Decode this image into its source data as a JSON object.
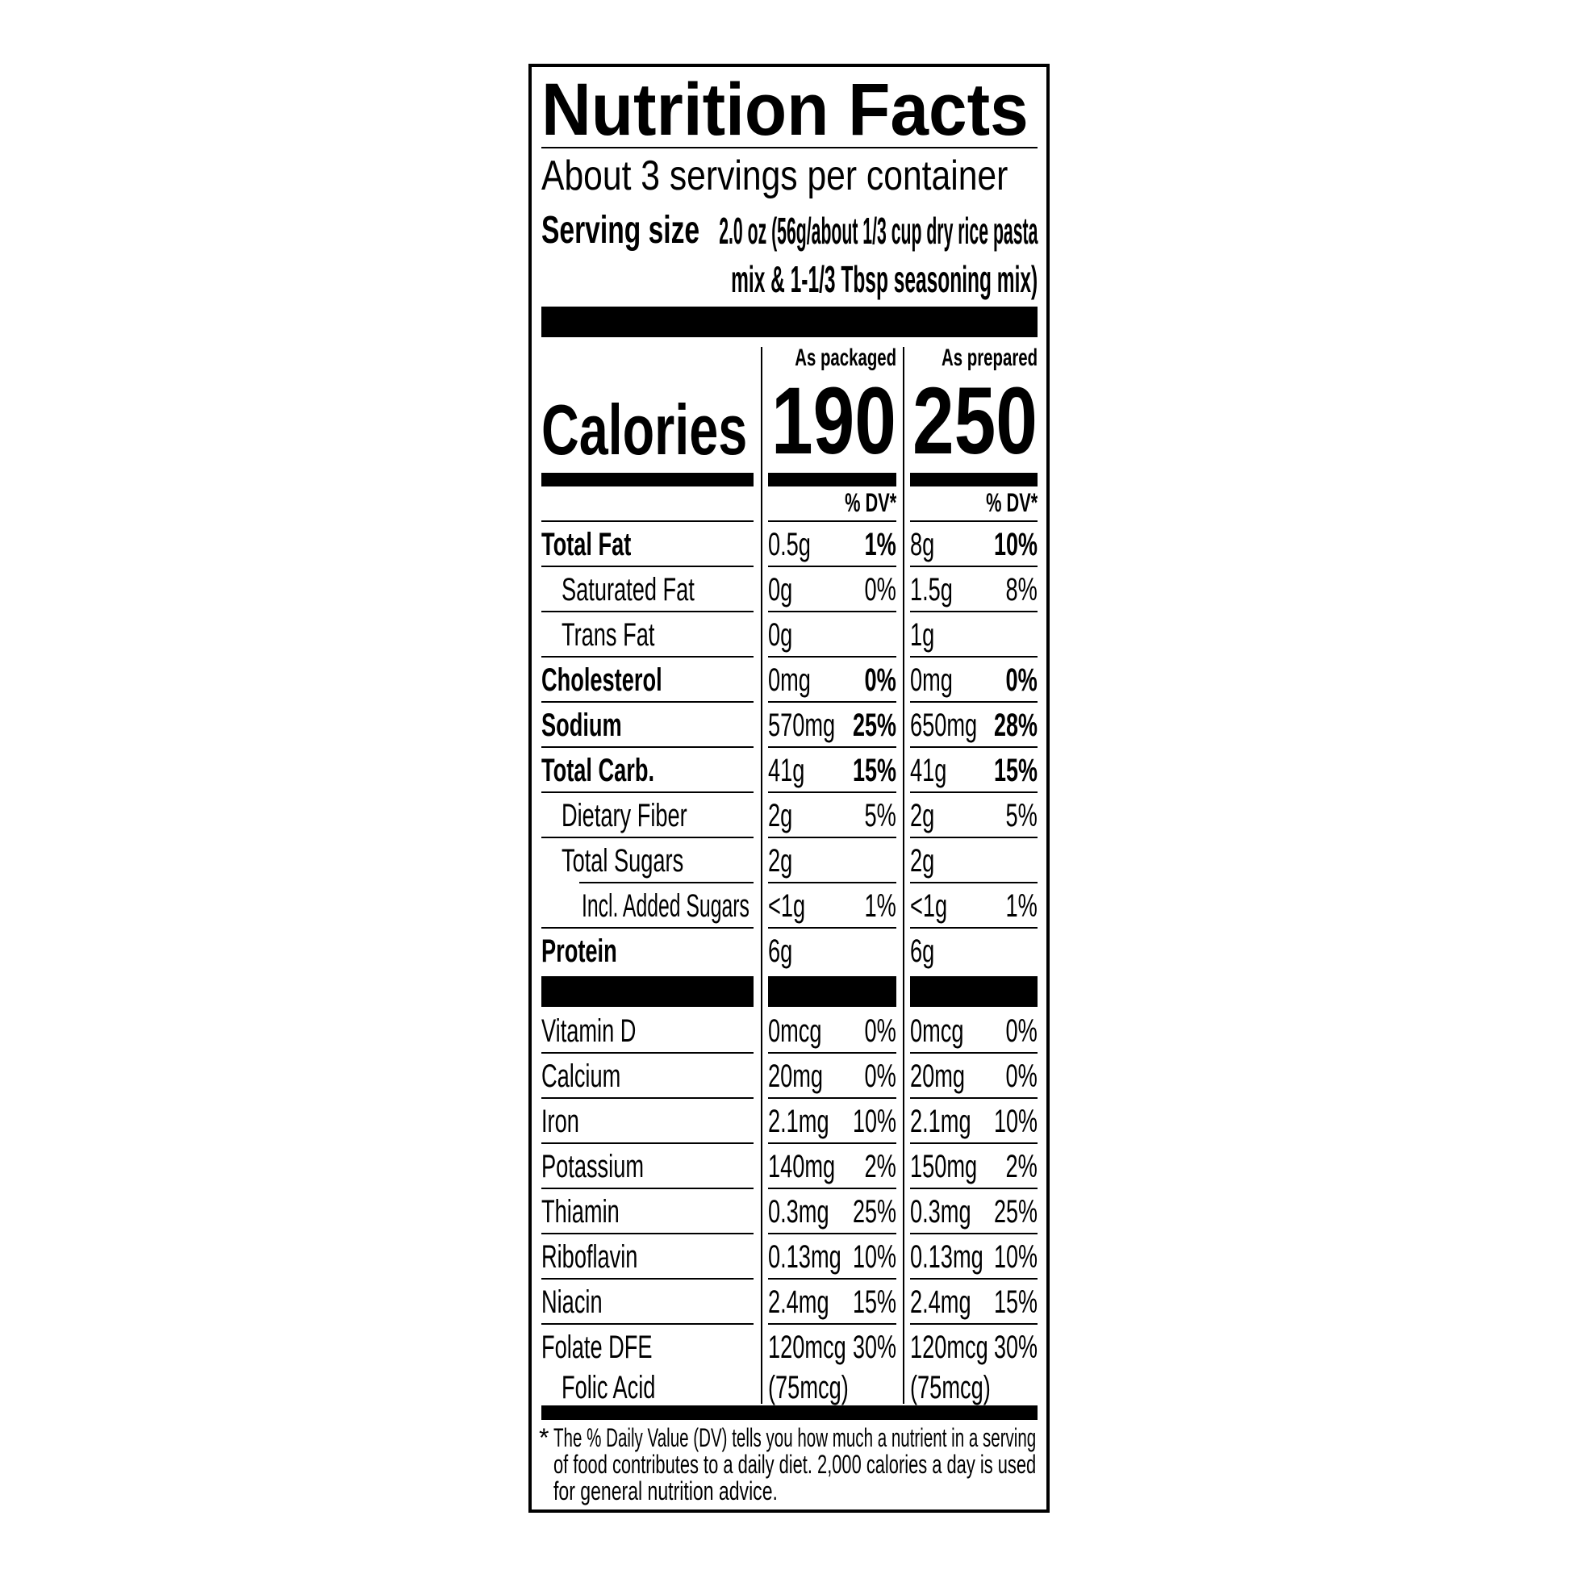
{
  "title": "Nutrition Facts",
  "servings_per_container": "About 3 servings per container",
  "serving_size": {
    "label": "Serving size",
    "line1": "2.0 oz (56g/about 1/3 cup dry rice pasta",
    "line2": "mix & 1-1/3 Tbsp seasoning mix)"
  },
  "columns": {
    "packaged": {
      "header": "As packaged",
      "calories": "190",
      "dv_header": "% DV*"
    },
    "prepared": {
      "header": "As prepared",
      "calories": "250",
      "dv_header": "% DV*"
    }
  },
  "calories_label": "Calories",
  "nutrients": [
    {
      "label": "Total Fat",
      "bold": true,
      "indent": 0,
      "pkg": "0.5g",
      "pkg_dv": "1%",
      "prep": "8g",
      "prep_dv": "10%"
    },
    {
      "label": "Saturated Fat",
      "bold": false,
      "indent": 1,
      "pkg": "0g",
      "pkg_dv": "0%",
      "prep": "1.5g",
      "prep_dv": "8%"
    },
    {
      "label": "Trans Fat",
      "bold": false,
      "indent": 1,
      "pkg": "0g",
      "pkg_dv": "",
      "prep": "1g",
      "prep_dv": ""
    },
    {
      "label": "Cholesterol",
      "bold": true,
      "indent": 0,
      "pkg": "0mg",
      "pkg_dv": "0%",
      "prep": "0mg",
      "prep_dv": "0%"
    },
    {
      "label": "Sodium",
      "bold": true,
      "indent": 0,
      "pkg": "570mg",
      "pkg_dv": "25%",
      "prep": "650mg",
      "prep_dv": "28%"
    },
    {
      "label": "Total Carb.",
      "bold": true,
      "indent": 0,
      "pkg": "41g",
      "pkg_dv": "15%",
      "prep": "41g",
      "prep_dv": "15%"
    },
    {
      "label": "Dietary Fiber",
      "bold": false,
      "indent": 1,
      "pkg": "2g",
      "pkg_dv": "5%",
      "prep": "2g",
      "prep_dv": "5%"
    },
    {
      "label": "Total Sugars",
      "bold": false,
      "indent": 1,
      "pkg": "2g",
      "pkg_dv": "",
      "prep": "2g",
      "prep_dv": ""
    },
    {
      "label": "Incl. Added Sugars",
      "bold": false,
      "indent": 2,
      "pkg": "<1g",
      "pkg_dv": "1%",
      "prep": "<1g",
      "prep_dv": "1%"
    },
    {
      "label": "Protein",
      "bold": true,
      "indent": 0,
      "pkg": "6g",
      "pkg_dv": "",
      "prep": "6g",
      "prep_dv": ""
    }
  ],
  "vitamins": [
    {
      "label": "Vitamin D",
      "pkg": "0mcg",
      "pkg_dv": "0%",
      "prep": "0mcg",
      "prep_dv": "0%"
    },
    {
      "label": "Calcium",
      "pkg": "20mg",
      "pkg_dv": "0%",
      "prep": "20mg",
      "prep_dv": "0%"
    },
    {
      "label": "Iron",
      "pkg": "2.1mg",
      "pkg_dv": "10%",
      "prep": "2.1mg",
      "prep_dv": "10%"
    },
    {
      "label": "Potassium",
      "pkg": "140mg",
      "pkg_dv": "2%",
      "prep": "150mg",
      "prep_dv": "2%"
    },
    {
      "label": "Thiamin",
      "pkg": "0.3mg",
      "pkg_dv": "25%",
      "prep": "0.3mg",
      "prep_dv": "25%"
    },
    {
      "label": "Riboflavin",
      "pkg": "0.13mg",
      "pkg_dv": "10%",
      "prep": "0.13mg",
      "prep_dv": "10%"
    },
    {
      "label": "Niacin",
      "pkg": "2.4mg",
      "pkg_dv": "15%",
      "prep": "2.4mg",
      "prep_dv": "15%"
    }
  ],
  "folate": {
    "label": "Folate DFE",
    "sub_label": "Folic Acid",
    "pkg": "120mcg",
    "pkg_dv": "30%",
    "pkg_sub": "(75mcg)",
    "prep": "120mcg",
    "prep_dv": "30%",
    "prep_sub": "(75mcg)"
  },
  "footnote": {
    "asterisk": "*",
    "line1": "The % Daily Value (DV) tells you how much a nutrient in a serving",
    "line2": "of food contributes to a daily diet. 2,000 calories a day is used",
    "line3": "for general nutrition advice."
  }
}
